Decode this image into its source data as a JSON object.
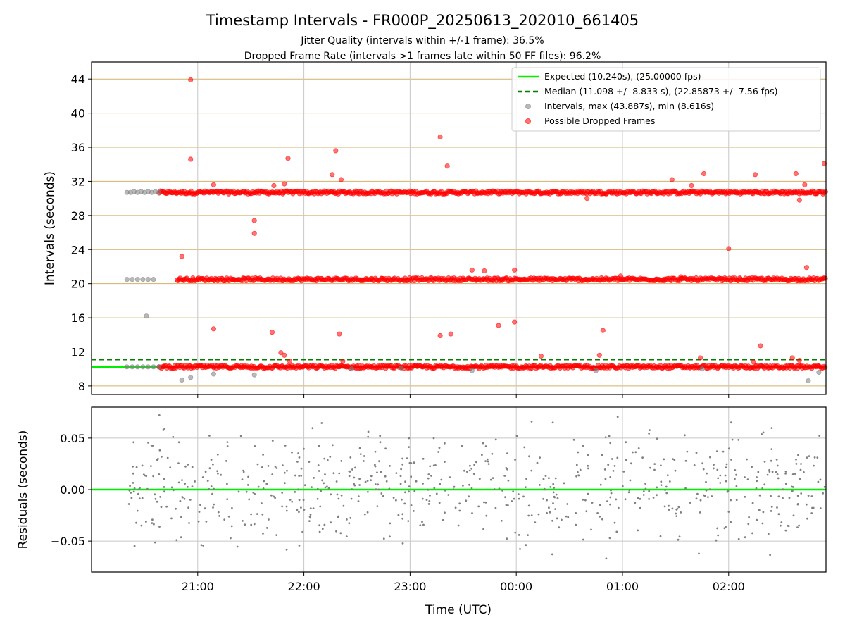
{
  "chart_data": [
    {
      "type": "scatter",
      "title": "Timestamp Intervals - FR000P_20250613_202010_661405",
      "subtitle_lines": [
        "Jitter Quality (intervals within +/-1 frame): 36.5%",
        "Dropped Frame Rate (intervals >1 frames late within 50 FF files): 96.2%"
      ],
      "ylabel": "Intervals (seconds)",
      "ylim": [
        7.0,
        46.0
      ],
      "xlim": [
        "20:00",
        "02:55"
      ],
      "y_ticks": [
        8,
        12,
        16,
        20,
        24,
        28,
        32,
        36,
        40,
        44
      ],
      "grid": true,
      "legend_position": "top-right",
      "reference_lines": [
        {
          "name": "Expected (10.240s), (25.00000 fps)",
          "y": 10.24,
          "color": "#00ee00",
          "style": "solid"
        },
        {
          "name": "Median (11.098 +/- 8.833 s), (22.85873 +/- 7.56 fps)",
          "y": 11.098,
          "color": "#007f00",
          "style": "dashed"
        }
      ],
      "series": [
        {
          "name": "Intervals, max (43.887s), min (8.616s)",
          "color": "#808080",
          "points": [
            [
              "20:20",
              30.7
            ],
            [
              "20:22",
              30.7
            ],
            [
              "20:24",
              30.8
            ],
            [
              "20:26",
              30.7
            ],
            [
              "20:28",
              30.8
            ],
            [
              "20:30",
              30.7
            ],
            [
              "20:32",
              30.8
            ],
            [
              "20:34",
              30.7
            ],
            [
              "20:36",
              30.8
            ],
            [
              "20:38",
              30.7
            ],
            [
              "20:20",
              20.5
            ],
            [
              "20:23",
              20.5
            ],
            [
              "20:26",
              20.5
            ],
            [
              "20:29",
              20.5
            ],
            [
              "20:32",
              20.5
            ],
            [
              "20:35",
              20.5
            ],
            [
              "20:20",
              10.24
            ],
            [
              "20:23",
              10.24
            ],
            [
              "20:26",
              10.24
            ],
            [
              "20:29",
              10.24
            ],
            [
              "20:32",
              10.24
            ],
            [
              "20:35",
              10.24
            ],
            [
              "20:38",
              10.24
            ],
            [
              "20:31",
              16.2
            ],
            [
              "20:51",
              8.7
            ],
            [
              "20:56",
              9.0
            ],
            [
              "21:09",
              9.4
            ],
            [
              "21:32",
              9.3
            ],
            [
              "22:27",
              10.0
            ],
            [
              "22:55",
              10.1
            ],
            [
              "23:35",
              9.8
            ],
            [
              "00:45",
              9.8
            ],
            [
              "01:45",
              10.0
            ],
            [
              "02:45",
              8.6
            ],
            [
              "02:51",
              9.6
            ]
          ]
        },
        {
          "name": "Possible Dropped Frames",
          "color": "#ff0000",
          "points": [
            [
              "20:56",
              43.9
            ],
            [
              "20:56",
              34.6
            ],
            [
              "21:51",
              34.7
            ],
            [
              "22:18",
              35.6
            ],
            [
              "23:17",
              37.2
            ],
            [
              "23:21",
              33.8
            ],
            [
              "22:16",
              32.8
            ],
            [
              "22:21",
              32.2
            ],
            [
              "21:09",
              31.6
            ],
            [
              "21:43",
              31.5
            ],
            [
              "21:49",
              31.7
            ],
            [
              "01:28",
              32.2
            ],
            [
              "01:39",
              31.5
            ],
            [
              "01:46",
              32.9
            ],
            [
              "02:15",
              32.8
            ],
            [
              "02:38",
              32.9
            ],
            [
              "02:43",
              31.6
            ],
            [
              "02:54",
              34.1
            ],
            [
              "00:40",
              30.0
            ],
            [
              "02:40",
              29.8
            ],
            [
              "21:32",
              27.4
            ],
            [
              "21:32",
              25.9
            ],
            [
              "20:51",
              23.2
            ],
            [
              "23:35",
              21.6
            ],
            [
              "23:42",
              21.5
            ],
            [
              "23:59",
              21.6
            ],
            [
              "00:59",
              20.9
            ],
            [
              "01:33",
              20.8
            ],
            [
              "02:00",
              24.1
            ],
            [
              "02:44",
              21.9
            ],
            [
              "21:09",
              14.7
            ],
            [
              "21:42",
              14.3
            ],
            [
              "22:20",
              14.1
            ],
            [
              "23:17",
              13.9
            ],
            [
              "23:23",
              14.1
            ],
            [
              "23:50",
              15.1
            ],
            [
              "23:59",
              15.5
            ],
            [
              "00:49",
              14.5
            ],
            [
              "21:47",
              11.9
            ],
            [
              "21:49",
              11.6
            ],
            [
              "21:52",
              10.9
            ],
            [
              "22:22",
              10.9
            ],
            [
              "00:14",
              11.5
            ],
            [
              "00:47",
              11.6
            ],
            [
              "01:44",
              11.3
            ],
            [
              "02:18",
              12.7
            ],
            [
              "02:36",
              11.3
            ],
            [
              "02:14",
              10.8
            ],
            [
              "02:40",
              11.0
            ]
          ],
          "bands": [
            {
              "y": 30.7,
              "x_range": [
                "20:38",
                "02:55"
              ]
            },
            {
              "y": 20.5,
              "x_range": [
                "20:48",
                "02:55"
              ]
            },
            {
              "y": 10.24,
              "x_range": [
                "20:38",
                "02:55"
              ]
            }
          ]
        }
      ]
    },
    {
      "type": "scatter",
      "ylabel": "Residuals (seconds)",
      "xlabel": "Time (UTC)",
      "ylim": [
        -0.08,
        0.08
      ],
      "y_tick_labels": [
        "0.05",
        "0.00",
        "−0.05"
      ],
      "y_ticks": [
        0.05,
        0.0,
        -0.05
      ],
      "x_tick_labels": [
        "21:00",
        "22:00",
        "23:00",
        "00:00",
        "01:00",
        "02:00"
      ],
      "grid": true,
      "reference_lines": [
        {
          "y": 0.0,
          "color": "#00ee00",
          "style": "solid"
        }
      ],
      "series": [
        {
          "name": "Residuals",
          "color": "#808080",
          "x_range": [
            "20:20",
            "02:55"
          ],
          "value_range": [
            -0.075,
            0.08
          ]
        }
      ]
    }
  ]
}
